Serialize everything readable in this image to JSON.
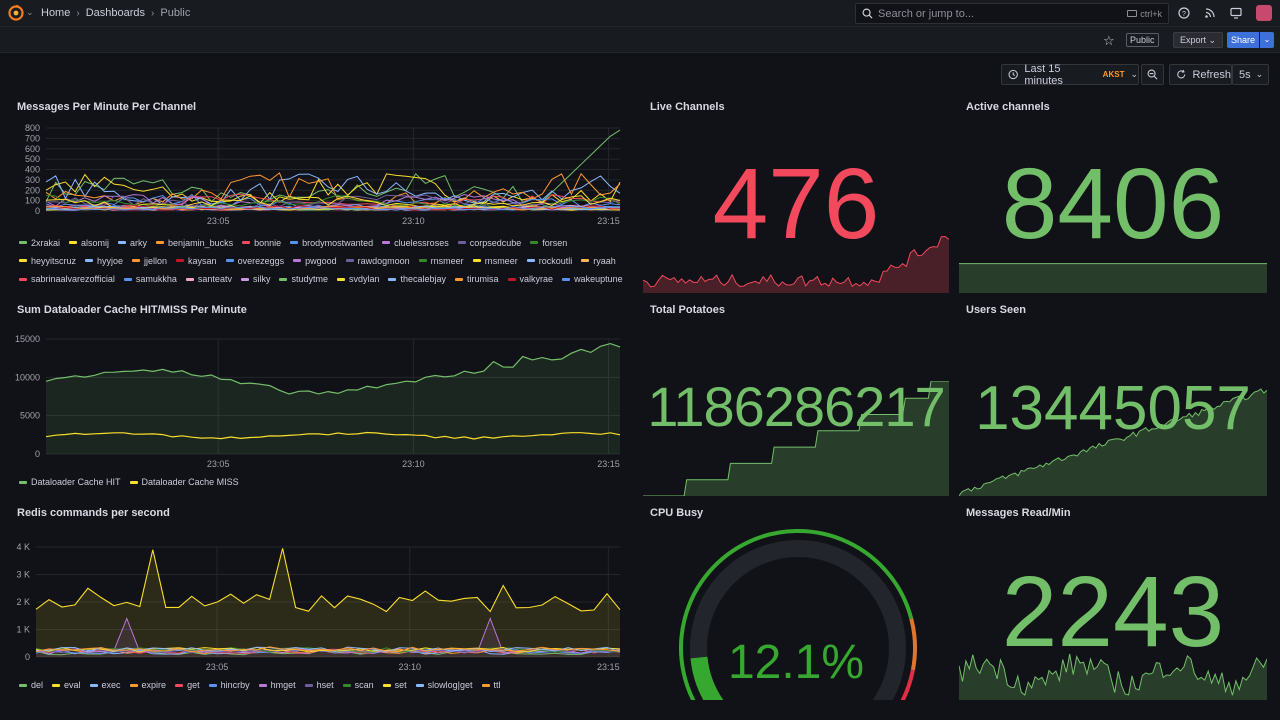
{
  "nav": {
    "crumbs": [
      "Home",
      "Dashboards",
      "Public"
    ],
    "search_placeholder": "Search or jump to...",
    "search_shortcut": "ctrl+k"
  },
  "toolbar": {
    "public_badge": "Public",
    "export_label": "Export",
    "share_label": "Share",
    "time_range": "Last 15 minutes",
    "timezone": "AKST",
    "refresh_label": "Refresh",
    "refresh_interval": "5s"
  },
  "colors": {
    "green": "#73bf69",
    "red": "#f2495c",
    "yellow": "#fade2a",
    "orange": "#ff9830",
    "blue": "#5794f2",
    "purple": "#b877d9"
  },
  "time_ticks": [
    "23:05",
    "23:10",
    "23:15"
  ],
  "panels": {
    "messages": {
      "title": "Messages Per Minute Per Channel",
      "yticks": [
        "800",
        "700",
        "600",
        "500",
        "400",
        "300",
        "200",
        "100",
        "0"
      ],
      "legend": [
        {
          "name": "2xrakai",
          "color": "#73bf69"
        },
        {
          "name": "alsomij",
          "color": "#fade2a"
        },
        {
          "name": "arky",
          "color": "#8ab8ff"
        },
        {
          "name": "benjamin_bucks",
          "color": "#ff9830"
        },
        {
          "name": "bonnie",
          "color": "#f2495c"
        },
        {
          "name": "brodymostwanted",
          "color": "#5794f2"
        },
        {
          "name": "cluelessroses",
          "color": "#b877d9"
        },
        {
          "name": "corpsedcube",
          "color": "#705da0"
        },
        {
          "name": "forsen",
          "color": "#37872d"
        },
        {
          "name": "heyyitscruz",
          "color": "#fade2a"
        },
        {
          "name": "hyyjoe",
          "color": "#8ab8ff"
        },
        {
          "name": "jjellon",
          "color": "#ff9830"
        },
        {
          "name": "kaysan",
          "color": "#c4162a"
        },
        {
          "name": "overezeggs",
          "color": "#5794f2"
        },
        {
          "name": "pwgood",
          "color": "#b877d9"
        },
        {
          "name": "rawdogmoon",
          "color": "#705da0"
        },
        {
          "name": "rnsmeer",
          "color": "#37872d"
        },
        {
          "name": "rnsmeer",
          "color": "#fade2a"
        },
        {
          "name": "rockoutli",
          "color": "#8ab8ff"
        },
        {
          "name": "ryaah",
          "color": "#ffb357"
        },
        {
          "name": "sabrinaalvarezofficial",
          "color": "#f2495c"
        },
        {
          "name": "samukkha",
          "color": "#5794f2"
        },
        {
          "name": "santeatv",
          "color": "#f2a7c9"
        },
        {
          "name": "silky",
          "color": "#ca95e5"
        },
        {
          "name": "studytme",
          "color": "#73bf69"
        },
        {
          "name": "svdylan",
          "color": "#fade2a"
        },
        {
          "name": "thecalebjay",
          "color": "#8ab8ff"
        },
        {
          "name": "tirumisa",
          "color": "#ff9830"
        },
        {
          "name": "valkyrae",
          "color": "#c4162a"
        },
        {
          "name": "wakeuptune",
          "color": "#5794f2"
        }
      ]
    },
    "live": {
      "title": "Live Channels",
      "value": "476"
    },
    "active": {
      "title": "Active channels",
      "value": "8406"
    },
    "cache": {
      "title": "Sum Dataloader Cache HIT/MISS Per Minute",
      "yticks": [
        "15000",
        "10000",
        "5000",
        "0"
      ],
      "legend": [
        {
          "name": "Dataloader Cache HIT",
          "color": "#73bf69"
        },
        {
          "name": "Dataloader Cache MISS",
          "color": "#fade2a"
        }
      ]
    },
    "potatoes": {
      "title": "Total Potatoes",
      "value": "1186286217"
    },
    "users": {
      "title": "Users Seen",
      "value": "13445057"
    },
    "redis": {
      "title": "Redis commands per second",
      "yticks": [
        "4 K",
        "3 K",
        "2 K",
        "1 K",
        "0"
      ],
      "legend": [
        {
          "name": "del",
          "color": "#73bf69"
        },
        {
          "name": "eval",
          "color": "#fade2a"
        },
        {
          "name": "exec",
          "color": "#8ab8ff"
        },
        {
          "name": "expire",
          "color": "#ff9830"
        },
        {
          "name": "get",
          "color": "#f2495c"
        },
        {
          "name": "hincrby",
          "color": "#5794f2"
        },
        {
          "name": "hmget",
          "color": "#b877d9"
        },
        {
          "name": "hset",
          "color": "#705da0"
        },
        {
          "name": "scan",
          "color": "#37872d"
        },
        {
          "name": "set",
          "color": "#fade2a"
        },
        {
          "name": "slowlog|get",
          "color": "#8ab8ff"
        },
        {
          "name": "ttl",
          "color": "#ff9830"
        }
      ]
    },
    "cpu": {
      "title": "CPU Busy",
      "value": "12.1%",
      "percent": 12.1
    },
    "reads": {
      "title": "Messages Read/Min",
      "value": "2243"
    }
  }
}
